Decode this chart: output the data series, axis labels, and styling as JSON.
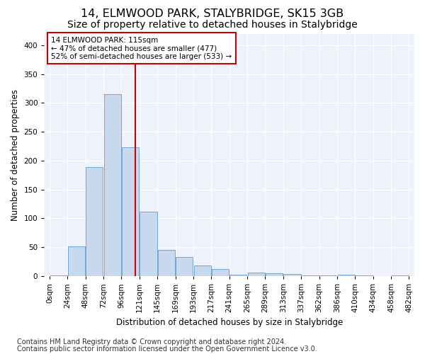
{
  "title": "14, ELMWOOD PARK, STALYBRIDGE, SK15 3GB",
  "subtitle": "Size of property relative to detached houses in Stalybridge",
  "xlabel": "Distribution of detached houses by size in Stalybridge",
  "ylabel": "Number of detached properties",
  "footnote1": "Contains HM Land Registry data © Crown copyright and database right 2024.",
  "footnote2": "Contains public sector information licensed under the Open Government Licence v3.0.",
  "tick_labels": [
    "0sqm",
    "24sqm",
    "48sqm",
    "72sqm",
    "96sqm",
    "121sqm",
    "145sqm",
    "169sqm",
    "193sqm",
    "217sqm",
    "241sqm",
    "265sqm",
    "289sqm",
    "313sqm",
    "337sqm",
    "362sqm",
    "386sqm",
    "410sqm",
    "434sqm",
    "458sqm",
    "482sqm"
  ],
  "bar_values": [
    1,
    52,
    189,
    315,
    223,
    112,
    46,
    33,
    19,
    12,
    3,
    6,
    5,
    4,
    1,
    1,
    3,
    1,
    0,
    1
  ],
  "bar_color": "#c8d9ee",
  "bar_edge_color": "#6699cc",
  "vline_x": 4,
  "annotation_text": "14 ELMWOOD PARK: 115sqm\n← 47% of detached houses are smaller (477)\n52% of semi-detached houses are larger (533) →",
  "annotation_box_color": "#ffffff",
  "annotation_box_edge_color": "#cc0000",
  "ylim": [
    0,
    420
  ],
  "plot_bg_color": "#edf2fb",
  "fig_bg_color": "#ffffff",
  "grid_color": "#ffffff",
  "title_fontsize": 11.5,
  "subtitle_fontsize": 10,
  "axis_label_fontsize": 8.5,
  "tick_fontsize": 7.5,
  "footnote_fontsize": 7,
  "yticks": [
    0,
    50,
    100,
    150,
    200,
    250,
    300,
    350,
    400
  ]
}
